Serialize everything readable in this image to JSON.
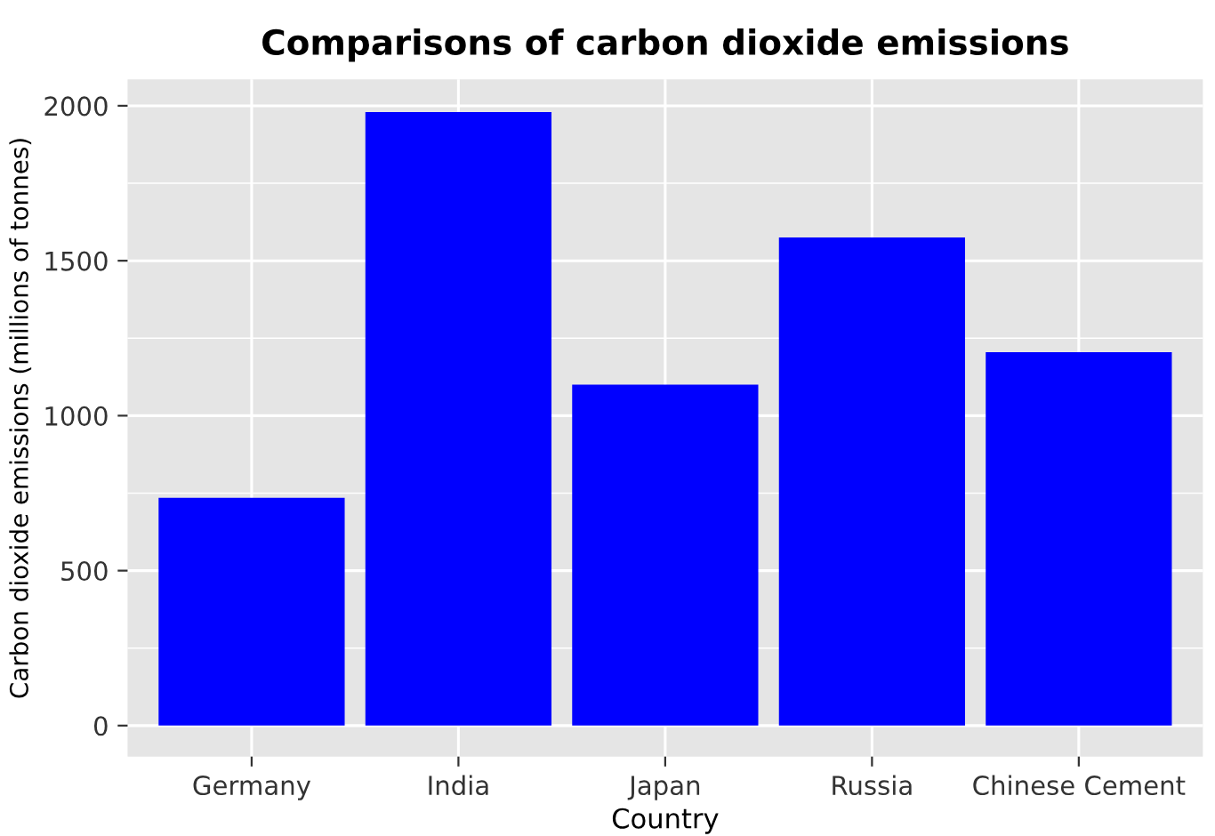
{
  "chart_data": {
    "type": "bar",
    "title": "Comparisons of carbon dioxide emissions",
    "xlabel": "Country",
    "ylabel": "Carbon dioxide emissions (millions of tonnes)",
    "categories": [
      "Germany",
      "India",
      "Japan",
      "Russia",
      "Chinese Cement"
    ],
    "values": [
      735,
      1980,
      1100,
      1575,
      1205
    ],
    "color": "#0000ff",
    "ylim": [
      -100,
      2085
    ],
    "yticks": [
      0,
      500,
      1000,
      1500,
      2000
    ],
    "grid": true,
    "legend": false
  }
}
